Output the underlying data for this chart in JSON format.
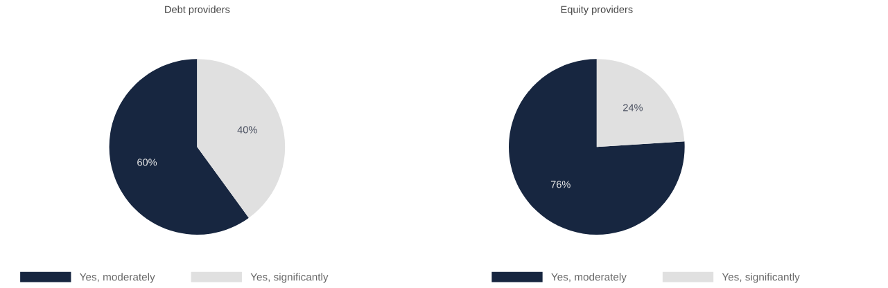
{
  "chart_data": [
    {
      "type": "pie",
      "title": "Debt providers",
      "categories": [
        "Yes, moderately",
        "Yes, significantly"
      ],
      "values": [
        60,
        40
      ],
      "colors": [
        "#172640",
        "#e0e0e0"
      ],
      "value_labels": [
        "60%",
        "40%"
      ],
      "legend": "bottom"
    },
    {
      "type": "pie",
      "title": "Equity providers",
      "categories": [
        "Yes, moderately",
        "Yes, significantly"
      ],
      "values": [
        76,
        24
      ],
      "colors": [
        "#172640",
        "#e0e0e0"
      ],
      "value_labels": [
        "76%",
        "24%"
      ],
      "legend": "bottom"
    }
  ]
}
